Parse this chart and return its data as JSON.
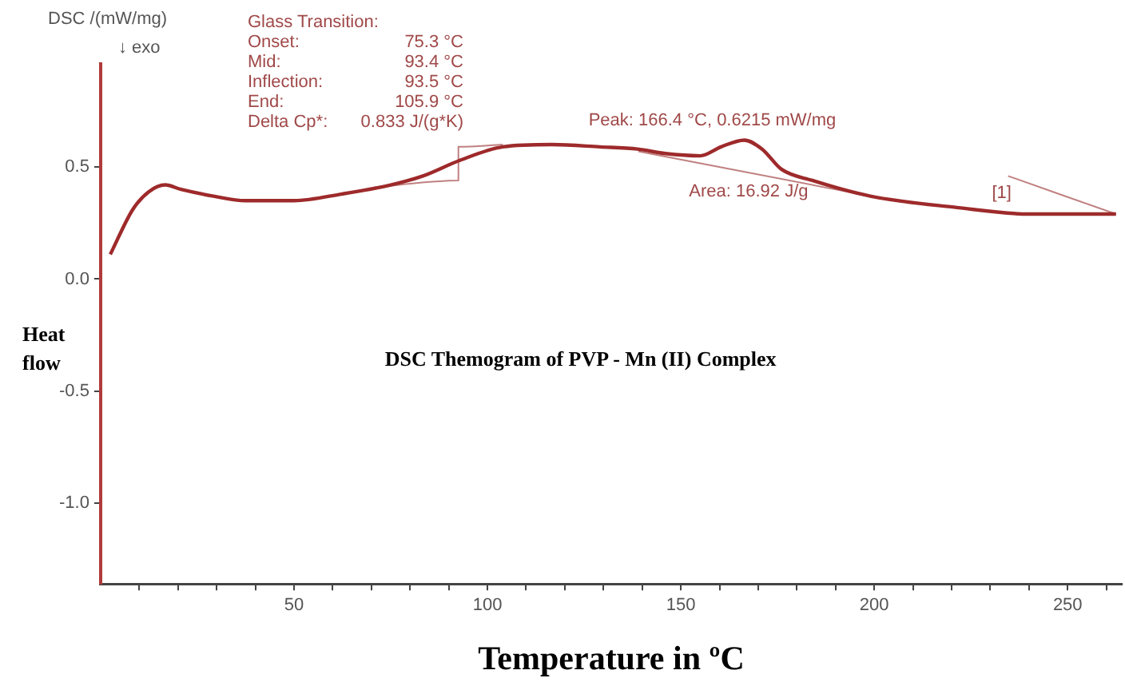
{
  "chart_data": {
    "type": "line",
    "title": "DSC Themogram of PVP - Mn (II) Complex",
    "xlabel": "Temperature in ºC",
    "ylabel": "Heat\nflow",
    "xlim": [
      0,
      264
    ],
    "ylim": [
      -1.36,
      0.96
    ],
    "xticks": [
      {
        "value": 10,
        "label": null
      },
      {
        "value": 20,
        "label": null
      },
      {
        "value": 30,
        "label": null
      },
      {
        "value": 40,
        "label": null
      },
      50,
      {
        "value": 60,
        "label": null
      },
      {
        "value": 70,
        "label": null
      },
      {
        "value": 80,
        "label": null
      },
      {
        "value": 90,
        "label": null
      },
      100,
      {
        "value": 110,
        "label": null
      },
      {
        "value": 120,
        "label": null
      },
      {
        "value": 130,
        "label": null
      },
      {
        "value": 140,
        "label": null
      },
      150,
      {
        "value": 160,
        "label": null
      },
      {
        "value": 170,
        "label": null
      },
      {
        "value": 180,
        "label": null
      },
      {
        "value": 190,
        "label": null
      },
      200,
      {
        "value": 210,
        "label": null
      },
      {
        "value": 220,
        "label": null
      },
      {
        "value": 230,
        "label": null
      },
      {
        "value": 240,
        "label": null
      },
      250,
      {
        "value": 260,
        "label": null
      }
    ],
    "yticks": [
      {
        "value": 0.5,
        "label": "0.5"
      },
      {
        "value": 0,
        "label": "0.0"
      },
      {
        "value": -0.5,
        "label": "-0.5"
      },
      {
        "value": -1,
        "label": "-1.0"
      }
    ],
    "grid": false,
    "legend": false,
    "marker": "none",
    "line_style": "solid",
    "series": [
      {
        "color": "#9e2a2b",
        "x": [
          2.5,
          8.3,
          12.5,
          16.7,
          20.8,
          29.2,
          37.5,
          50,
          62.5,
          75,
          83.3,
          92.9,
          104,
          116.7,
          129,
          138.8,
          146,
          155,
          160.4,
          166.4,
          171,
          176,
          184,
          199,
          221,
          240,
          262.5
        ],
        "values": [
          0.11,
          0.31,
          0.39,
          0.42,
          0.4,
          0.37,
          0.35,
          0.35,
          0.38,
          0.42,
          0.46,
          0.53,
          0.59,
          0.6,
          0.59,
          0.58,
          0.56,
          0.55,
          0.59,
          0.62,
          0.58,
          0.49,
          0.44,
          0.37,
          0.32,
          0.29,
          0.29
        ]
      },
      {
        "color": "#c08080",
        "x": [
          70.8,
          92.5,
          92.5,
          104
        ],
        "values": [
          0.41,
          0.44,
          0.59,
          0.6
        ]
      },
      {
        "color": "#c08080",
        "x": [
          139,
          199
        ],
        "values": [
          0.57,
          0.37
        ]
      },
      {
        "color": "#c08080",
        "x": [
          234.6,
          262.5
        ],
        "values": [
          0.46,
          0.29
        ]
      }
    ],
    "annotations": [
      "DSC /(mW/mg)",
      "↓ exo",
      "Glass Transition:",
      "Onset:  75.3 °C",
      "Mid:  93.4 °C",
      "Inflection:  93.5 °C",
      "End:  105.9 °C",
      "Delta Cp*:  0.833 J/(g*K)",
      {
        "text": "Peak: 166.4 °C, 0.6215 mW/mg",
        "x": 166.4,
        "y": 0.6215
      },
      {
        "text": "Area: 16.92 J/g",
        "x": 170,
        "y": 0.47
      },
      {
        "text": "[1]",
        "x": 234.6,
        "y": 0.46
      }
    ]
  }
}
